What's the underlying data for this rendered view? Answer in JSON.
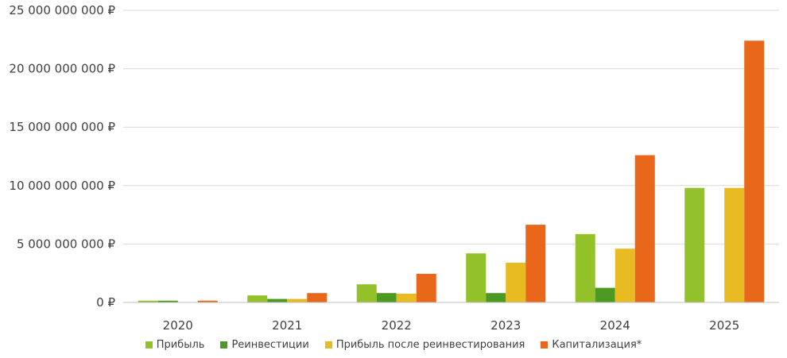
{
  "chart_data": {
    "type": "bar",
    "categories": [
      "2020",
      "2021",
      "2022",
      "2023",
      "2024",
      "2025"
    ],
    "series": [
      {
        "name": "Прибыль",
        "color": "#92c12a",
        "values": [
          150000000,
          600000000,
          1550000000,
          4200000000,
          5850000000,
          9800000000
        ]
      },
      {
        "name": "Реинвестиции",
        "color": "#4d9a22",
        "values": [
          150000000,
          300000000,
          800000000,
          800000000,
          1250000000,
          0
        ]
      },
      {
        "name": "Прибыль после реинвестирования",
        "color": "#e9bb23",
        "values": [
          0,
          300000000,
          750000000,
          3400000000,
          4600000000,
          9800000000
        ]
      },
      {
        "name": "Капитализация*",
        "color": "#e8671b",
        "values": [
          150000000,
          800000000,
          2450000000,
          6650000000,
          12600000000,
          22400000000
        ]
      }
    ],
    "ylim": [
      0,
      25000000000
    ],
    "yticks": [
      {
        "value": 0,
        "label": "0 ₽"
      },
      {
        "value": 5000000000,
        "label": "5 000 000 000 ₽"
      },
      {
        "value": 10000000000,
        "label": "10 000 000 000 ₽"
      },
      {
        "value": 15000000000,
        "label": "15 000 000 000 ₽"
      },
      {
        "value": 20000000000,
        "label": "20 000 000 000 ₽"
      },
      {
        "value": 25000000000,
        "label": "25 000 000 000 ₽"
      }
    ],
    "grid": true,
    "legend_position": "bottom"
  }
}
